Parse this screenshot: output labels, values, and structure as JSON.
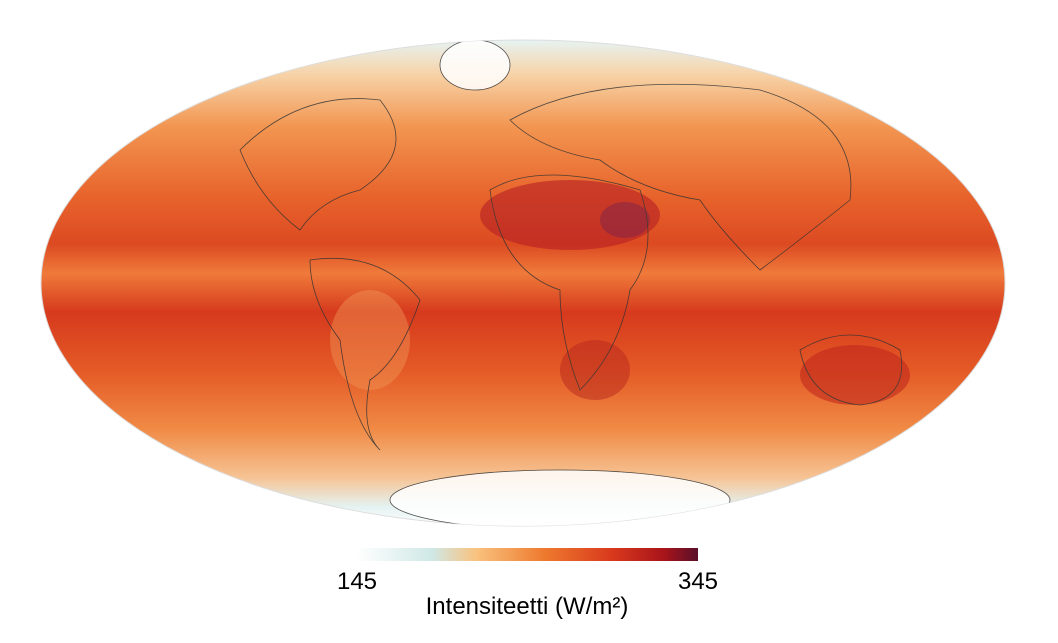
{
  "map": {
    "colorbar": {
      "ticks": [
        145,
        345
      ],
      "label": "Intensiteetti (W/m²)"
    }
  }
}
